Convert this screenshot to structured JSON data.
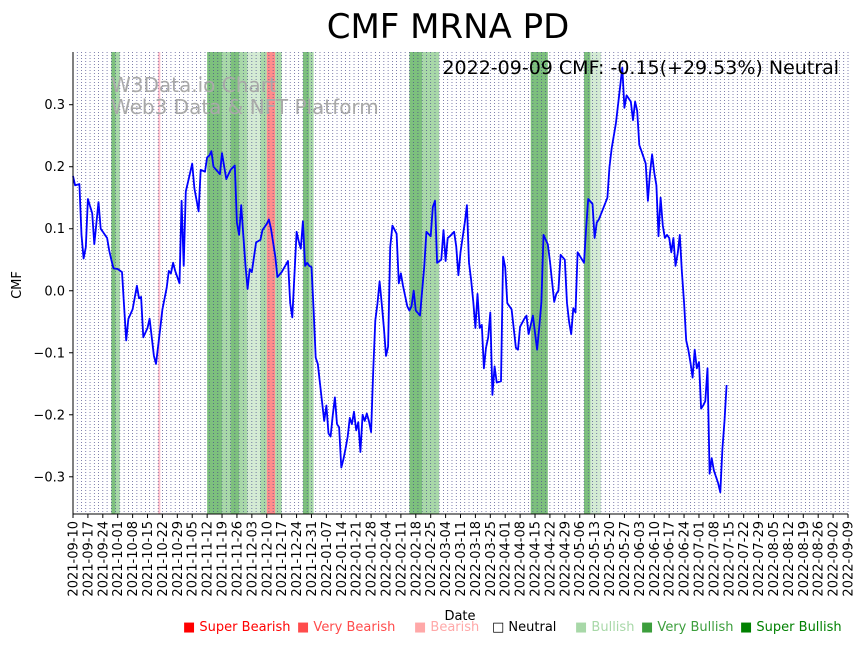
{
  "chart_data": {
    "type": "line",
    "title": "CMF MRNA PD",
    "annotation": "2022-09-09 CMF: -0.15(+29.53%) Neutral",
    "watermark_line1": "W3Data.io Chart",
    "watermark_line2": "Web3 Data & NFT Platform",
    "xlabel": "Date",
    "ylabel": "CMF",
    "ylim": [
      -0.36,
      0.385
    ],
    "yticks": [
      -0.3,
      -0.2,
      -0.1,
      0.0,
      0.1,
      0.2,
      0.3
    ],
    "ytick_labels": [
      "−0.3",
      "−0.2",
      "−0.1",
      "0.0",
      "0.1",
      "0.2",
      "0.3"
    ],
    "x_start": "2021-09-10",
    "x_end": "2022-09-09",
    "xtick_labels": [
      "2021-09-10",
      "2021-09-17",
      "2021-09-24",
      "2021-10-01",
      "2021-10-08",
      "2021-10-15",
      "2021-10-22",
      "2021-10-29",
      "2021-11-05",
      "2021-11-12",
      "2021-11-19",
      "2021-11-26",
      "2021-12-03",
      "2021-12-10",
      "2021-12-17",
      "2021-12-24",
      "2021-12-31",
      "2022-01-07",
      "2022-01-14",
      "2022-01-21",
      "2022-01-28",
      "2022-02-04",
      "2022-02-11",
      "2022-02-18",
      "2022-02-25",
      "2022-03-04",
      "2022-03-11",
      "2022-03-18",
      "2022-03-25",
      "2022-04-01",
      "2022-04-08",
      "2022-04-15",
      "2022-04-22",
      "2022-04-29",
      "2022-05-06",
      "2022-05-13",
      "2022-05-20",
      "2022-05-27",
      "2022-06-03",
      "2022-06-10",
      "2022-06-17",
      "2022-06-24",
      "2022-07-01",
      "2022-07-08",
      "2022-07-15",
      "2022-07-22",
      "2022-07-29",
      "2022-08-05",
      "2022-08-12",
      "2022-08-19",
      "2022-08-26",
      "2022-09-02",
      "2022-09-09"
    ],
    "series": [
      {
        "name": "CMF",
        "color": "#0000ff",
        "points": [
          [
            0,
            0.185
          ],
          [
            1,
            0.17
          ],
          [
            3,
            0.172
          ],
          [
            4,
            0.09
          ],
          [
            5,
            0.052
          ],
          [
            6,
            0.07
          ],
          [
            7,
            0.148
          ],
          [
            9,
            0.125
          ],
          [
            10,
            0.075
          ],
          [
            12,
            0.143
          ],
          [
            13,
            0.1
          ],
          [
            14,
            0.095
          ],
          [
            16,
            0.085
          ],
          [
            17,
            0.065
          ],
          [
            18,
            0.05
          ],
          [
            19,
            0.036
          ],
          [
            21,
            0.035
          ],
          [
            23,
            0.03
          ],
          [
            25,
            -0.08
          ],
          [
            26,
            -0.045
          ],
          [
            28,
            -0.03
          ],
          [
            30,
            0.008
          ],
          [
            31,
            -0.012
          ],
          [
            32,
            -0.01
          ],
          [
            33,
            -0.075
          ],
          [
            35,
            -0.06
          ],
          [
            36,
            -0.045
          ],
          [
            38,
            -0.105
          ],
          [
            39,
            -0.118
          ],
          [
            41,
            -0.06
          ],
          [
            42,
            -0.03
          ],
          [
            44,
            0.005
          ],
          [
            45,
            0.032
          ],
          [
            46,
            0.028
          ],
          [
            47,
            0.045
          ],
          [
            48,
            0.032
          ],
          [
            50,
            0.012
          ],
          [
            51,
            0.145
          ],
          [
            52,
            0.04
          ],
          [
            53,
            0.16
          ],
          [
            55,
            0.19
          ],
          [
            56,
            0.205
          ],
          [
            57,
            0.165
          ],
          [
            59,
            0.128
          ],
          [
            60,
            0.195
          ],
          [
            62,
            0.192
          ],
          [
            63,
            0.215
          ],
          [
            64,
            0.218
          ],
          [
            65,
            0.225
          ],
          [
            66,
            0.2
          ],
          [
            69,
            0.188
          ],
          [
            70,
            0.222
          ],
          [
            71,
            0.2
          ],
          [
            72,
            0.18
          ],
          [
            74,
            0.195
          ],
          [
            76,
            0.202
          ],
          [
            77,
            0.11
          ],
          [
            78,
            0.09
          ],
          [
            79,
            0.138
          ],
          [
            80,
            0.09
          ],
          [
            81,
            0.04
          ],
          [
            82,
            0.003
          ],
          [
            83,
            0.035
          ],
          [
            84,
            0.03
          ],
          [
            86,
            0.078
          ],
          [
            88,
            0.082
          ],
          [
            89,
            0.098
          ],
          [
            91,
            0.108
          ],
          [
            92,
            0.115
          ],
          [
            93,
            0.1
          ],
          [
            95,
            0.055
          ],
          [
            96,
            0.022
          ],
          [
            98,
            0.03
          ],
          [
            100,
            0.042
          ],
          [
            101,
            0.048
          ],
          [
            102,
            -0.02
          ],
          [
            103,
            -0.043
          ],
          [
            105,
            0.095
          ],
          [
            106,
            0.08
          ],
          [
            107,
            0.068
          ],
          [
            108,
            0.112
          ],
          [
            109,
            0.04
          ],
          [
            110,
            0.045
          ],
          [
            111,
            0.04
          ],
          [
            112,
            0.038
          ],
          [
            113,
            -0.03
          ],
          [
            114,
            -0.108
          ],
          [
            115,
            -0.118
          ],
          [
            117,
            -0.18
          ],
          [
            118,
            -0.21
          ],
          [
            119,
            -0.185
          ],
          [
            120,
            -0.23
          ],
          [
            121,
            -0.235
          ],
          [
            122,
            -0.2
          ],
          [
            123,
            -0.172
          ],
          [
            124,
            -0.215
          ],
          [
            125,
            -0.22
          ],
          [
            126,
            -0.285
          ],
          [
            127,
            -0.272
          ],
          [
            128,
            -0.255
          ],
          [
            129,
            -0.235
          ],
          [
            130,
            -0.205
          ],
          [
            131,
            -0.215
          ],
          [
            132,
            -0.195
          ],
          [
            133,
            -0.225
          ],
          [
            134,
            -0.212
          ],
          [
            135,
            -0.26
          ],
          [
            136,
            -0.2
          ],
          [
            137,
            -0.21
          ],
          [
            138,
            -0.198
          ],
          [
            139,
            -0.21
          ],
          [
            140,
            -0.228
          ],
          [
            141,
            -0.13
          ],
          [
            142,
            -0.048
          ],
          [
            143,
            -0.02
          ],
          [
            144,
            0.015
          ],
          [
            145,
            -0.02
          ],
          [
            146,
            -0.06
          ],
          [
            147,
            -0.105
          ],
          [
            148,
            -0.09
          ],
          [
            149,
            0.07
          ],
          [
            150,
            0.105
          ],
          [
            152,
            0.092
          ],
          [
            153,
            0.012
          ],
          [
            154,
            0.028
          ],
          [
            155,
            0.008
          ],
          [
            157,
            -0.025
          ],
          [
            158,
            -0.032
          ],
          [
            159,
            -0.025
          ],
          [
            160,
            0.0
          ],
          [
            161,
            -0.032
          ],
          [
            163,
            -0.04
          ],
          [
            165,
            0.04
          ],
          [
            166,
            0.095
          ],
          [
            168,
            0.088
          ],
          [
            169,
            0.135
          ],
          [
            170,
            0.145
          ],
          [
            171,
            0.045
          ],
          [
            173,
            0.05
          ],
          [
            174,
            0.098
          ],
          [
            175,
            0.048
          ],
          [
            176,
            0.085
          ],
          [
            177,
            0.088
          ],
          [
            179,
            0.095
          ],
          [
            180,
            0.072
          ],
          [
            181,
            0.025
          ],
          [
            182,
            0.062
          ],
          [
            184,
            0.11
          ],
          [
            185,
            0.138
          ],
          [
            186,
            0.045
          ],
          [
            187,
            0.018
          ],
          [
            188,
            -0.018
          ],
          [
            189,
            -0.06
          ],
          [
            190,
            -0.005
          ],
          [
            191,
            -0.06
          ],
          [
            192,
            -0.055
          ],
          [
            193,
            -0.125
          ],
          [
            194,
            -0.092
          ],
          [
            195,
            -0.075
          ],
          [
            196,
            -0.035
          ],
          [
            197,
            -0.168
          ],
          [
            198,
            -0.122
          ],
          [
            199,
            -0.148
          ],
          [
            201,
            -0.146
          ],
          [
            202,
            0.055
          ],
          [
            203,
            0.038
          ],
          [
            204,
            -0.02
          ],
          [
            206,
            -0.03
          ],
          [
            208,
            -0.092
          ],
          [
            209,
            -0.095
          ],
          [
            210,
            -0.058
          ],
          [
            212,
            -0.045
          ],
          [
            213,
            -0.04
          ],
          [
            214,
            -0.07
          ],
          [
            216,
            -0.04
          ],
          [
            218,
            -0.095
          ],
          [
            219,
            -0.058
          ],
          [
            220,
            -0.018
          ],
          [
            221,
            0.09
          ],
          [
            223,
            0.075
          ],
          [
            224,
            0.048
          ],
          [
            226,
            -0.018
          ],
          [
            227,
            -0.005
          ],
          [
            228,
            0.0
          ],
          [
            229,
            0.058
          ],
          [
            231,
            0.05
          ],
          [
            232,
            -0.02
          ],
          [
            233,
            -0.05
          ],
          [
            234,
            -0.07
          ],
          [
            235,
            -0.028
          ],
          [
            236,
            -0.035
          ],
          [
            237,
            0.062
          ],
          [
            240,
            0.045
          ],
          [
            241,
            0.1
          ],
          [
            242,
            0.148
          ],
          [
            244,
            0.14
          ],
          [
            245,
            0.085
          ],
          [
            246,
            0.11
          ],
          [
            247,
            0.115
          ],
          [
            251,
            0.15
          ],
          [
            252,
            0.2
          ],
          [
            253,
            0.23
          ],
          [
            255,
            0.27
          ],
          [
            257,
            0.33
          ],
          [
            258,
            0.36
          ],
          [
            259,
            0.295
          ],
          [
            260,
            0.315
          ],
          [
            261,
            0.31
          ],
          [
            262,
            0.305
          ],
          [
            263,
            0.275
          ],
          [
            264,
            0.305
          ],
          [
            265,
            0.29
          ],
          [
            266,
            0.235
          ],
          [
            267,
            0.225
          ],
          [
            269,
            0.205
          ],
          [
            270,
            0.145
          ],
          [
            271,
            0.19
          ],
          [
            272,
            0.22
          ],
          [
            273,
            0.19
          ],
          [
            274,
            0.17
          ],
          [
            275,
            0.088
          ],
          [
            276,
            0.15
          ],
          [
            277,
            0.105
          ],
          [
            278,
            0.085
          ],
          [
            279,
            0.09
          ],
          [
            280,
            0.085
          ],
          [
            281,
            0.062
          ],
          [
            282,
            0.085
          ],
          [
            283,
            0.04
          ],
          [
            284,
            0.06
          ],
          [
            285,
            0.09
          ],
          [
            286,
            0.03
          ],
          [
            287,
            -0.02
          ],
          [
            288,
            -0.08
          ],
          [
            289,
            -0.095
          ],
          [
            290,
            -0.115
          ],
          [
            291,
            -0.14
          ],
          [
            292,
            -0.095
          ],
          [
            293,
            -0.125
          ],
          [
            294,
            -0.115
          ],
          [
            295,
            -0.19
          ],
          [
            296,
            -0.185
          ],
          [
            297,
            -0.178
          ],
          [
            298,
            -0.125
          ],
          [
            299,
            -0.295
          ],
          [
            300,
            -0.27
          ],
          [
            301,
            -0.29
          ],
          [
            303,
            -0.31
          ],
          [
            304,
            -0.325
          ],
          [
            305,
            -0.255
          ],
          [
            306,
            -0.21
          ],
          [
            307,
            -0.152
          ]
        ]
      }
    ],
    "bands": [
      {
        "start": 18,
        "end": 20,
        "level": "Very Bullish"
      },
      {
        "start": 20,
        "end": 22,
        "level": "Bullish"
      },
      {
        "start": 40,
        "end": 41,
        "level": "Bearish"
      },
      {
        "start": 63,
        "end": 70,
        "level": "Very Bullish"
      },
      {
        "start": 70,
        "end": 74,
        "level": "Bullish"
      },
      {
        "start": 74,
        "end": 78,
        "level": "Very Bullish"
      },
      {
        "start": 78,
        "end": 82,
        "level": "Bullish"
      },
      {
        "start": 82,
        "end": 88,
        "level": "Neutral-Light"
      },
      {
        "start": 88,
        "end": 91,
        "level": "Bullish"
      },
      {
        "start": 91,
        "end": 95,
        "level": "Very Bearish"
      },
      {
        "start": 95,
        "end": 98,
        "level": "Bullish"
      },
      {
        "start": 108,
        "end": 111,
        "level": "Very Bullish"
      },
      {
        "start": 111,
        "end": 113,
        "level": "Bullish"
      },
      {
        "start": 158,
        "end": 164,
        "level": "Very Bullish"
      },
      {
        "start": 164,
        "end": 172,
        "level": "Bullish"
      },
      {
        "start": 215,
        "end": 223,
        "level": "Very Bullish"
      },
      {
        "start": 240,
        "end": 243,
        "level": "Very Bullish"
      },
      {
        "start": 243,
        "end": 248,
        "level": "Neutral-Light"
      }
    ],
    "legend": [
      {
        "label": "Super Bearish",
        "symbol": "■",
        "color": "#ff0000"
      },
      {
        "label": "Very Bearish",
        "symbol": "■",
        "color": "#ff4c4c"
      },
      {
        "label": "Bearish",
        "symbol": "■",
        "color": "#ffa8a8"
      },
      {
        "label": "Neutral",
        "symbol": "□",
        "color": "#000000"
      },
      {
        "label": "Bullish",
        "symbol": "■",
        "color": "#a8d8a8"
      },
      {
        "label": "Very Bullish",
        "symbol": "■",
        "color": "#3c9e3c"
      },
      {
        "label": "Super Bullish",
        "symbol": "■",
        "color": "#008000"
      }
    ],
    "band_colors": {
      "Very Bullish": "#7dc07d",
      "Bullish": "#a8d8a8",
      "Neutral-Light": "#d4ebd4",
      "Bearish": "#ffc0cb",
      "Very Bearish": "#ff8c8c"
    }
  }
}
